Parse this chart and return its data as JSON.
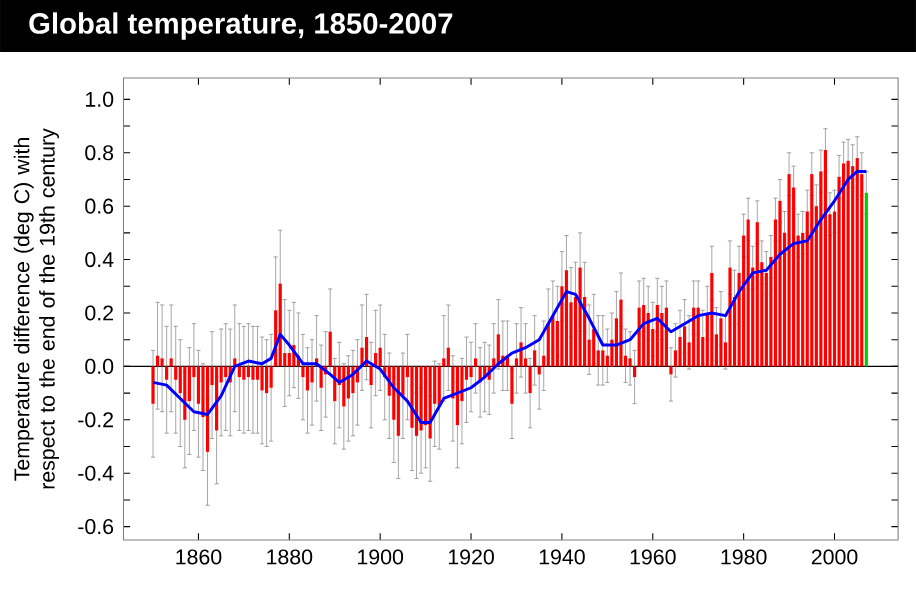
{
  "chart_data": {
    "type": "bar",
    "title": "Global temperature, 1850-2007",
    "ylabel": "Temperature difference (deg C) with respect to the end of the 19th century",
    "xlim": [
      1843.5,
      2014
    ],
    "ylim": [
      -0.65,
      1.08
    ],
    "xticks": [
      1860,
      1880,
      1900,
      1920,
      1940,
      1960,
      1980,
      2000
    ],
    "yticks": [
      {
        "value": -0.6,
        "label": "-0.6"
      },
      {
        "value": -0.5,
        "label": null
      },
      {
        "value": -0.4,
        "label": "-0.4"
      },
      {
        "value": -0.3,
        "label": null
      },
      {
        "value": -0.2,
        "label": "-0.2"
      },
      {
        "value": -0.1,
        "label": null
      },
      {
        "value": 0,
        "label": "0.0"
      },
      {
        "value": 0.1,
        "label": null
      },
      {
        "value": 0.2,
        "label": "0.2"
      },
      {
        "value": 0.3,
        "label": null
      },
      {
        "value": 0.4,
        "label": "0.4"
      },
      {
        "value": 0.5,
        "label": null
      },
      {
        "value": 0.6,
        "label": "0.6"
      },
      {
        "value": 0.7,
        "label": null
      },
      {
        "value": 0.8,
        "label": "0.8"
      },
      {
        "value": 0.9,
        "label": null
      },
      {
        "value": 1.0,
        "label": "1.0"
      }
    ],
    "ref_lines": [
      {
        "axis": "y",
        "value": 0,
        "color": "#000000"
      }
    ],
    "series": [
      {
        "x": [
          1850,
          1851,
          1852,
          1853,
          1854,
          1855,
          1856,
          1857,
          1858,
          1859,
          1860,
          1861,
          1862,
          1863,
          1864,
          1865,
          1866,
          1867,
          1868,
          1869,
          1870,
          1871,
          1872,
          1873,
          1874,
          1875,
          1876,
          1877,
          1878,
          1879,
          1880,
          1881,
          1882,
          1883,
          1884,
          1885,
          1886,
          1887,
          1888,
          1889,
          1890,
          1891,
          1892,
          1893,
          1894,
          1895,
          1896,
          1897,
          1898,
          1899,
          1900,
          1901,
          1902,
          1903,
          1904,
          1905,
          1906,
          1907,
          1908,
          1909,
          1910,
          1911,
          1912,
          1913,
          1914,
          1915,
          1916,
          1917,
          1918,
          1919,
          1920,
          1921,
          1922,
          1923,
          1924,
          1925,
          1926,
          1927,
          1928,
          1929,
          1930,
          1931,
          1932,
          1933,
          1934,
          1935,
          1936,
          1937,
          1938,
          1939,
          1940,
          1941,
          1942,
          1943,
          1944,
          1945,
          1946,
          1947,
          1948,
          1949,
          1950,
          1951,
          1952,
          1953,
          1954,
          1955,
          1956,
          1957,
          1958,
          1959,
          1960,
          1961,
          1962,
          1963,
          1964,
          1965,
          1966,
          1967,
          1968,
          1969,
          1970,
          1971,
          1972,
          1973,
          1974,
          1975,
          1976,
          1977,
          1978,
          1979,
          1980,
          1981,
          1982,
          1983,
          1984,
          1985,
          1986,
          1987,
          1988,
          1989,
          1990,
          1991,
          1992,
          1993,
          1994,
          1995,
          1996,
          1997,
          1998,
          1999,
          2000,
          2001,
          2002,
          2003,
          2004,
          2005,
          2006,
          2007
        ],
        "values": [
          -0.14,
          0.04,
          0.03,
          -0.05,
          0.03,
          -0.05,
          -0.1,
          -0.2,
          -0.13,
          -0.04,
          -0.14,
          -0.19,
          -0.32,
          -0.07,
          -0.24,
          -0.06,
          -0.04,
          -0.06,
          0.03,
          -0.04,
          -0.05,
          -0.04,
          -0.05,
          -0.05,
          -0.09,
          -0.1,
          -0.08,
          0.21,
          0.31,
          0.05,
          0.05,
          0.08,
          0.04,
          -0.04,
          -0.09,
          -0.06,
          0.03,
          -0.08,
          -0.03,
          0.13,
          -0.13,
          -0.07,
          -0.15,
          -0.12,
          -0.1,
          -0.06,
          0.07,
          0.11,
          -0.07,
          0.05,
          0.07,
          -0.04,
          -0.11,
          -0.2,
          -0.26,
          -0.11,
          -0.04,
          -0.23,
          -0.26,
          -0.24,
          -0.22,
          -0.27,
          -0.14,
          -0.15,
          0.03,
          0.07,
          -0.12,
          -0.22,
          -0.13,
          -0.05,
          -0.04,
          0.03,
          -0.06,
          -0.04,
          -0.05,
          0.03,
          0.12,
          0.04,
          0.04,
          -0.14,
          0.03,
          0.09,
          0.03,
          -0.1,
          0.06,
          -0.03,
          0.04,
          0.16,
          0.19,
          0.17,
          0.3,
          0.36,
          0.24,
          0.26,
          0.37,
          0.26,
          0.1,
          0.14,
          0.06,
          0.06,
          0.04,
          0.1,
          0.18,
          0.25,
          0.04,
          0.03,
          -0.04,
          0.22,
          0.23,
          0.2,
          0.14,
          0.23,
          0.2,
          0.22,
          -0.03,
          0.06,
          0.11,
          0.15,
          0.09,
          0.22,
          0.22,
          0.11,
          0.2,
          0.35,
          0.12,
          0.18,
          0.09,
          0.37,
          0.26,
          0.35,
          0.49,
          0.55,
          0.37,
          0.54,
          0.39,
          0.35,
          0.41,
          0.55,
          0.62,
          0.5,
          0.72,
          0.67,
          0.49,
          0.5,
          0.58,
          0.72,
          0.6,
          0.73,
          0.81,
          0.57,
          0.58,
          0.71,
          0.76,
          0.77,
          0.75,
          0.78,
          0.72,
          0.65
        ],
        "errors": [
          0.2,
          0.2,
          0.2,
          0.2,
          0.2,
          0.2,
          0.2,
          0.18,
          0.2,
          0.2,
          0.2,
          0.2,
          0.2,
          0.2,
          0.2,
          0.2,
          0.2,
          0.2,
          0.2,
          0.2,
          0.2,
          0.2,
          0.2,
          0.2,
          0.2,
          0.2,
          0.2,
          0.2,
          0.2,
          0.2,
          0.16,
          0.16,
          0.16,
          0.16,
          0.16,
          0.16,
          0.16,
          0.16,
          0.16,
          0.16,
          0.16,
          0.16,
          0.16,
          0.16,
          0.16,
          0.16,
          0.16,
          0.16,
          0.16,
          0.16,
          0.16,
          0.16,
          0.16,
          0.16,
          0.16,
          0.16,
          0.16,
          0.16,
          0.16,
          0.16,
          0.16,
          0.16,
          0.16,
          0.16,
          0.16,
          0.16,
          0.16,
          0.16,
          0.16,
          0.16,
          0.13,
          0.13,
          0.13,
          0.13,
          0.13,
          0.13,
          0.13,
          0.13,
          0.13,
          0.13,
          0.13,
          0.13,
          0.13,
          0.13,
          0.13,
          0.13,
          0.13,
          0.13,
          0.13,
          0.13,
          0.13,
          0.13,
          0.13,
          0.13,
          0.13,
          0.13,
          0.13,
          0.13,
          0.13,
          0.13,
          0.1,
          0.1,
          0.1,
          0.1,
          0.1,
          0.1,
          0.1,
          0.1,
          0.1,
          0.1,
          0.1,
          0.1,
          0.1,
          0.1,
          0.1,
          0.1,
          0.1,
          0.1,
          0.1,
          0.1,
          0.1,
          0.1,
          0.1,
          0.1,
          0.1,
          0.1,
          0.1,
          0.1,
          0.1,
          0.1,
          0.08,
          0.08,
          0.08,
          0.08,
          0.08,
          0.08,
          0.08,
          0.08,
          0.08,
          0.08,
          0.08,
          0.08,
          0.08,
          0.08,
          0.08,
          0.08,
          0.08,
          0.08,
          0.08,
          0.08,
          0.08,
          0.08,
          0.08,
          0.08,
          0.08,
          0.08,
          0.08,
          0.08
        ],
        "colors": [
          "#ff0000",
          "#ff0000",
          "#ff0000",
          "#ff0000",
          "#ff0000",
          "#ff0000",
          "#ff0000",
          "#ff0000",
          "#ff0000",
          "#ff0000",
          "#ff0000",
          "#ff0000",
          "#ff0000",
          "#ff0000",
          "#ff0000",
          "#ff0000",
          "#ff0000",
          "#ff0000",
          "#ff0000",
          "#ff0000",
          "#ff0000",
          "#ff0000",
          "#ff0000",
          "#ff0000",
          "#ff0000",
          "#ff0000",
          "#ff0000",
          "#ff0000",
          "#ff0000",
          "#ff0000",
          "#ff0000",
          "#ff0000",
          "#ff0000",
          "#ff0000",
          "#ff0000",
          "#ff0000",
          "#ff0000",
          "#ff0000",
          "#ff0000",
          "#ff0000",
          "#ff0000",
          "#ff0000",
          "#ff0000",
          "#ff0000",
          "#ff0000",
          "#ff0000",
          "#ff0000",
          "#ff0000",
          "#ff0000",
          "#ff0000",
          "#ff0000",
          "#ff0000",
          "#ff0000",
          "#ff0000",
          "#ff0000",
          "#ff0000",
          "#ff0000",
          "#ff0000",
          "#ff0000",
          "#ff0000",
          "#ff0000",
          "#ff0000",
          "#ff0000",
          "#ff0000",
          "#ff0000",
          "#ff0000",
          "#ff0000",
          "#ff0000",
          "#ff0000",
          "#ff0000",
          "#ff0000",
          "#ff0000",
          "#ff0000",
          "#ff0000",
          "#ff0000",
          "#ff0000",
          "#ff0000",
          "#ff0000",
          "#ff0000",
          "#ff0000",
          "#ff0000",
          "#ff0000",
          "#ff0000",
          "#ff0000",
          "#ff0000",
          "#ff0000",
          "#ff0000",
          "#ff0000",
          "#ff0000",
          "#ff0000",
          "#ff0000",
          "#ff0000",
          "#ff0000",
          "#ff0000",
          "#ff0000",
          "#ff0000",
          "#ff0000",
          "#ff0000",
          "#ff0000",
          "#ff0000",
          "#ff0000",
          "#ff0000",
          "#ff0000",
          "#ff0000",
          "#ff0000",
          "#ff0000",
          "#ff0000",
          "#ff0000",
          "#ff0000",
          "#ff0000",
          "#ff0000",
          "#ff0000",
          "#ff0000",
          "#ff0000",
          "#ff0000",
          "#ff0000",
          "#ff0000",
          "#ff0000",
          "#ff0000",
          "#ff0000",
          "#ff0000",
          "#ff0000",
          "#ff0000",
          "#ff0000",
          "#ff0000",
          "#ff0000",
          "#ff0000",
          "#ff0000",
          "#ff0000",
          "#ff0000",
          "#ff0000",
          "#ff0000",
          "#ff0000",
          "#ff0000",
          "#ff0000",
          "#ff0000",
          "#ff0000",
          "#ff0000",
          "#ff0000",
          "#ff0000",
          "#ff0000",
          "#ff0000",
          "#ff0000",
          "#ff0000",
          "#ff0000",
          "#ff0000",
          "#ff0000",
          "#ff0000",
          "#ff0000",
          "#ff0000",
          "#ff0000",
          "#ff0000",
          "#ff0000",
          "#ff0000",
          "#ff0000",
          "#ff0000",
          "#ff0000",
          "#00cc00"
        ]
      },
      {
        "type": "line",
        "color": "#0000ff",
        "x": [
          1850,
          1853,
          1856,
          1859,
          1862,
          1865,
          1868,
          1871,
          1874,
          1876,
          1878,
          1880,
          1883,
          1886,
          1889,
          1891,
          1894,
          1897,
          1900,
          1903,
          1906,
          1909,
          1911,
          1914,
          1917,
          1920,
          1923,
          1926,
          1929,
          1932,
          1935,
          1938,
          1941,
          1943,
          1946,
          1949,
          1952,
          1955,
          1958,
          1961,
          1964,
          1967,
          1970,
          1973,
          1976,
          1979,
          1982,
          1985,
          1988,
          1991,
          1994,
          1997,
          2000,
          2003,
          2005,
          2007
        ],
        "values": [
          -0.06,
          -0.07,
          -0.12,
          -0.17,
          -0.18,
          -0.11,
          0.0,
          0.02,
          0.01,
          0.03,
          0.12,
          0.08,
          0.01,
          0.01,
          -0.03,
          -0.06,
          -0.03,
          0.02,
          -0.01,
          -0.08,
          -0.13,
          -0.21,
          -0.21,
          -0.12,
          -0.1,
          -0.08,
          -0.04,
          0.01,
          0.05,
          0.07,
          0.1,
          0.19,
          0.28,
          0.27,
          0.18,
          0.08,
          0.08,
          0.1,
          0.16,
          0.18,
          0.13,
          0.16,
          0.19,
          0.2,
          0.19,
          0.28,
          0.35,
          0.36,
          0.42,
          0.46,
          0.47,
          0.55,
          0.62,
          0.7,
          0.73,
          0.73
        ]
      }
    ]
  }
}
